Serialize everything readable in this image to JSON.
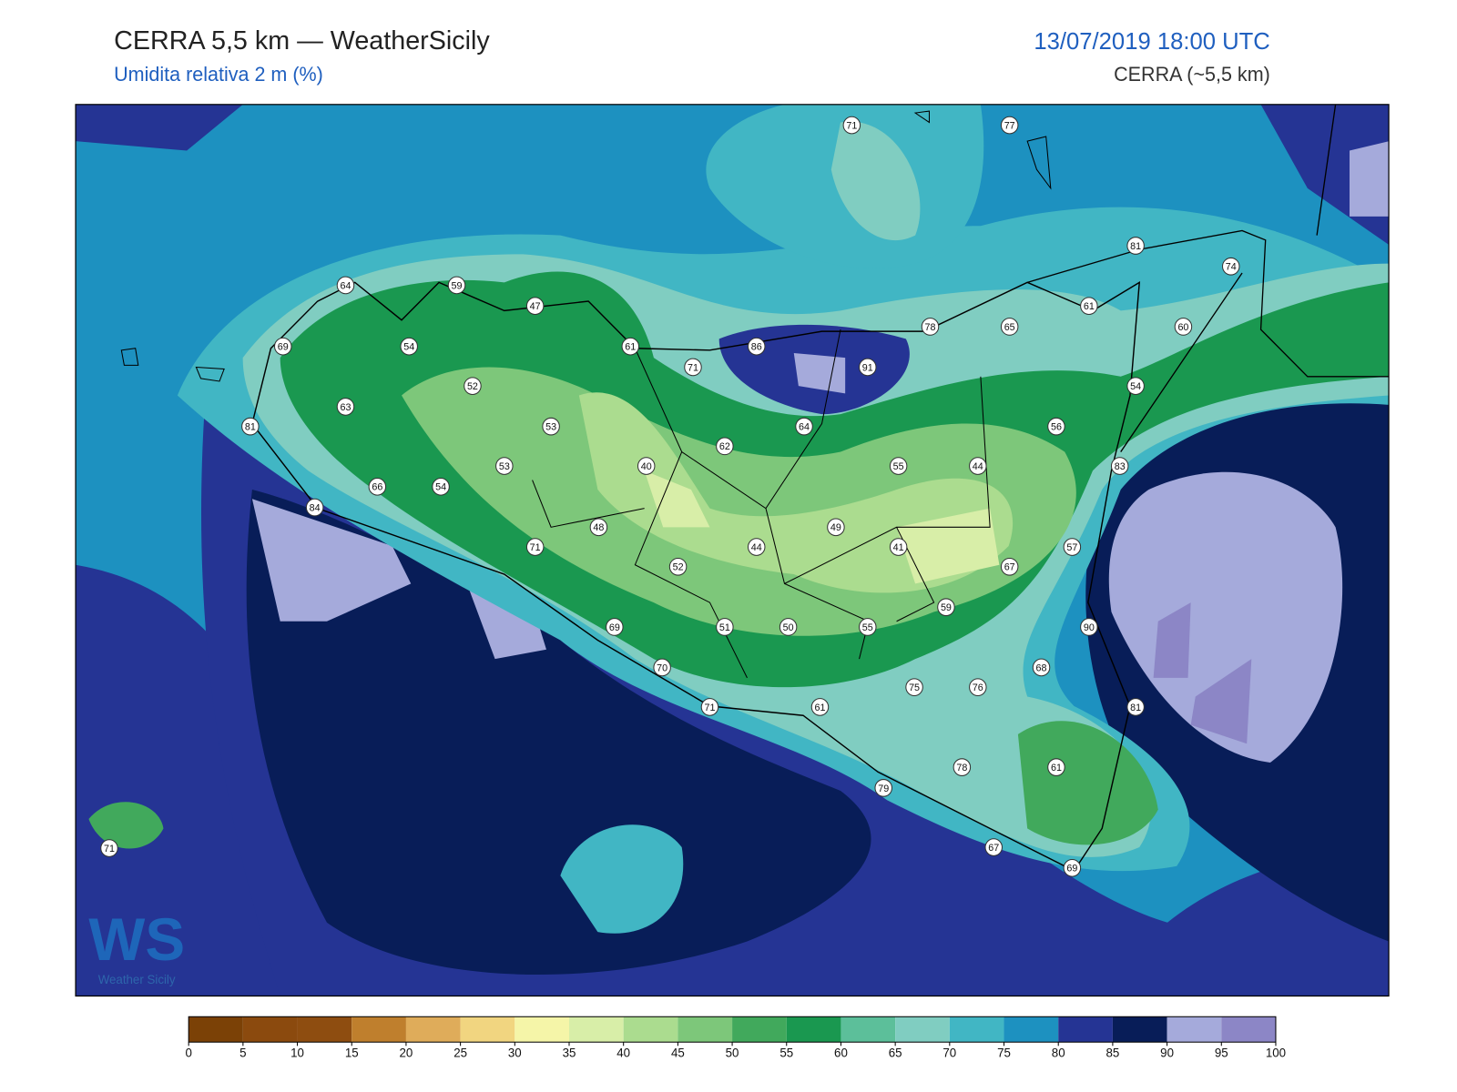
{
  "header": {
    "title": "CERRA 5,5 km — WeatherSicily",
    "subtitle": "Umidita relativa 2 m (%)",
    "datetime": "13/07/2019 18:00 UTC",
    "model": "CERRA (~5,5 km)"
  },
  "stations": [
    71,
    77,
    81,
    74,
    64,
    59,
    47,
    61,
    60,
    78,
    65,
    69,
    54,
    61,
    71,
    86,
    91,
    52,
    54,
    63,
    53,
    64,
    56,
    81,
    62,
    40,
    55,
    44,
    83,
    53,
    66,
    54,
    84,
    48,
    49,
    71,
    44,
    41,
    57,
    52,
    67,
    59,
    69,
    51,
    50,
    55,
    90,
    70,
    68,
    75,
    76,
    71,
    61,
    81,
    78,
    61,
    79,
    67,
    69,
    71
  ],
  "colorbar": {
    "ticks": [
      0,
      5,
      10,
      15,
      20,
      25,
      30,
      35,
      40,
      45,
      50,
      55,
      60,
      65,
      70,
      75,
      80,
      85,
      90,
      95,
      100
    ],
    "colors": [
      "#7b4106",
      "#8b4a0e",
      "#8e4d10",
      "#bf7f2d",
      "#dfac5a",
      "#f1d580",
      "#f5f5a8",
      "#d8eea8",
      "#abdc8f",
      "#7dc77a",
      "#41a95c",
      "#1a9850",
      "#5cbf9a",
      "#80cdc1",
      "#41b6c4",
      "#1d91c0",
      "#253494",
      "#081d58",
      "#a5aadb",
      "#8c86c6"
    ]
  },
  "logo": {
    "mark": "WS",
    "name": "Weather Sicily"
  }
}
